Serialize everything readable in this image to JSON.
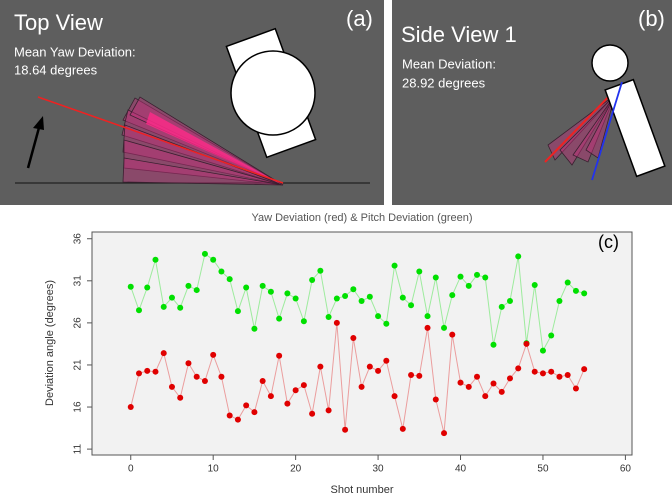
{
  "panel_a": {
    "title": "Top View",
    "tag": "(a)",
    "label": "Mean Yaw Deviation:",
    "value": "18.64 degrees"
  },
  "panel_b": {
    "title": "Side View 1",
    "tag": "(b)",
    "label": "Mean Deviation:",
    "value": "28.92 degrees"
  },
  "chart_data": {
    "type": "line",
    "title": "Yaw Deviation (red) & Pitch Deviation (green)",
    "annotation": "(c)",
    "x_label": "Shot number",
    "y_label": "Deviation angle (degrees)",
    "x": [
      0,
      1,
      2,
      3,
      4,
      5,
      6,
      7,
      8,
      9,
      10,
      11,
      12,
      13,
      14,
      15,
      16,
      17,
      18,
      19,
      20,
      21,
      22,
      23,
      24,
      25,
      26,
      27,
      28,
      29,
      30,
      31,
      32,
      33,
      34,
      35,
      36,
      37,
      38,
      39,
      40,
      41,
      42,
      43,
      44,
      45,
      46,
      47,
      48,
      49,
      50,
      51,
      52,
      53,
      54,
      55
    ],
    "series": [
      {
        "color": "#00e000",
        "values": [
          30.3,
          27.5,
          30.2,
          33.5,
          27.9,
          29.0,
          27.8,
          30.4,
          29.9,
          34.2,
          33.5,
          32.1,
          31.2,
          27.4,
          30.2,
          25.3,
          30.4,
          29.7,
          26.5,
          29.5,
          28.9,
          26.2,
          31.1,
          32.2,
          26.7,
          28.9,
          29.2,
          30.0,
          28.6,
          29.1,
          26.8,
          25.9,
          32.8,
          29.0,
          28.1,
          32.1,
          26.8,
          31.4,
          25.4,
          29.3,
          31.5,
          30.4,
          31.7,
          31.4,
          23.4,
          27.9,
          28.6,
          33.9,
          23.6,
          30.5,
          22.7,
          24.5,
          28.6,
          30.8,
          29.8,
          29.5
        ]
      },
      {
        "color": "#e00000",
        "values": [
          16.0,
          20.0,
          20.3,
          20.2,
          22.4,
          18.4,
          17.1,
          21.2,
          19.6,
          19.1,
          22.2,
          19.6,
          15.0,
          14.5,
          16.2,
          15.4,
          19.1,
          17.3,
          22.1,
          16.4,
          18.0,
          18.6,
          15.2,
          20.8,
          15.6,
          26.0,
          13.3,
          24.2,
          18.4,
          20.8,
          20.3,
          21.5,
          17.3,
          13.4,
          19.8,
          19.7,
          25.4,
          16.9,
          12.9,
          24.6,
          18.9,
          18.4,
          19.6,
          17.3,
          18.8,
          17.8,
          19.4,
          20.6,
          23.5,
          20.2,
          20.0,
          20.2,
          19.6,
          19.8,
          18.2,
          20.5
        ]
      }
    ],
    "xlim": [
      -4.7,
      60.8
    ],
    "xticks": [
      0,
      10,
      20,
      30,
      40,
      50,
      60
    ],
    "ylim": [
      10.3,
      36.8
    ],
    "yticks": [
      11,
      16,
      21,
      26,
      31,
      36
    ]
  }
}
